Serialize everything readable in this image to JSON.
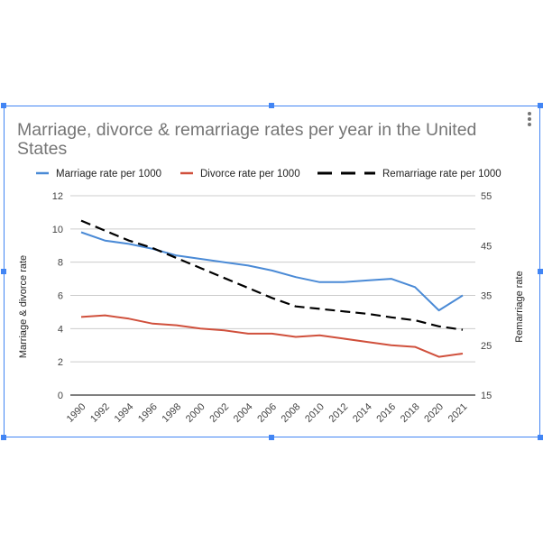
{
  "chart_data": {
    "type": "line",
    "title": "Marriage, divorce & remarriage rates per year in the United States",
    "ylabel": "Marriage & divorce rate",
    "y2label": "Remarriage rate",
    "xlabel": "",
    "legend_position": "top",
    "grid": true,
    "x": [
      "1990",
      "1992",
      "1994",
      "1996",
      "1998",
      "2000",
      "2002",
      "2004",
      "2006",
      "2008",
      "2010",
      "2012",
      "2014",
      "2016",
      "2018",
      "2020",
      "2021"
    ],
    "ylim": [
      0,
      12
    ],
    "y_ticks": [
      "0",
      "2",
      "4",
      "6",
      "8",
      "10",
      "12"
    ],
    "y2lim": [
      15,
      55
    ],
    "y2_ticks": [
      "15",
      "25",
      "35",
      "45",
      "55"
    ],
    "series": [
      {
        "name": "Marriage rate per 1000",
        "axis": "left",
        "color": "#4a8ad6",
        "dash": "solid",
        "values": [
          9.8,
          9.3,
          9.1,
          8.8,
          8.4,
          8.2,
          8.0,
          7.8,
          7.5,
          7.1,
          6.8,
          6.8,
          6.9,
          7.0,
          6.5,
          5.1,
          6.0
        ]
      },
      {
        "name": "Divorce rate per 1000",
        "axis": "left",
        "color": "#d0503c",
        "dash": "solid",
        "values": [
          4.7,
          4.8,
          4.6,
          4.3,
          4.2,
          4.0,
          3.9,
          3.7,
          3.7,
          3.5,
          3.6,
          3.4,
          3.2,
          3.0,
          2.9,
          2.3,
          2.5
        ]
      },
      {
        "name": "Remarriage rate per 1000",
        "axis": "right",
        "color": "#000000",
        "dash": "dashed",
        "values": [
          50,
          48,
          46,
          44.5,
          42.5,
          40.5,
          38.5,
          36.5,
          34.5,
          32.8,
          32.3,
          31.8,
          31.3,
          30.6,
          30.0,
          28.8,
          28.1
        ]
      }
    ]
  }
}
